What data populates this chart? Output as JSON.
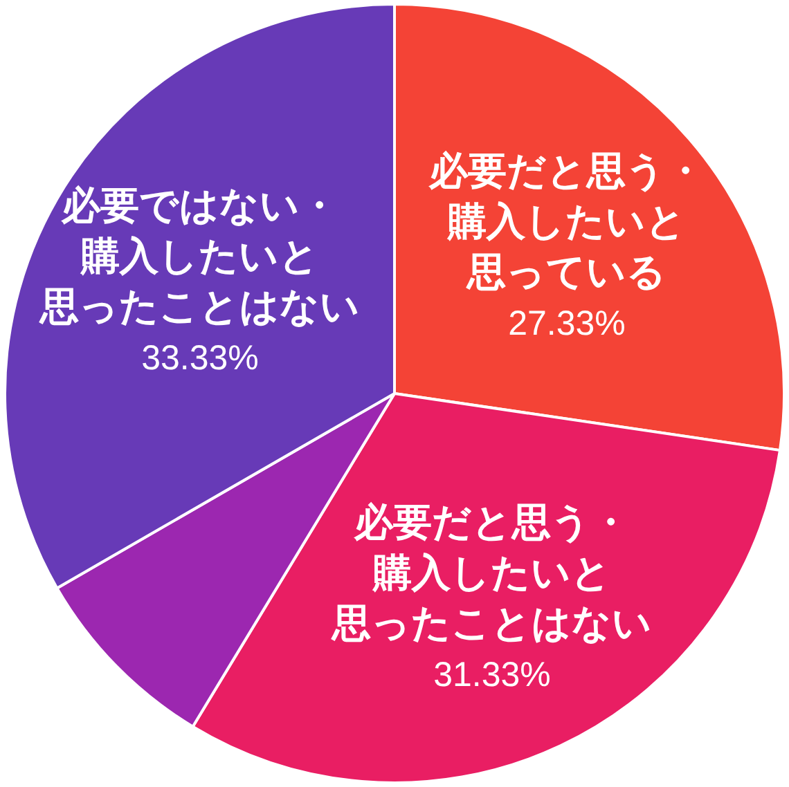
{
  "chart_data": {
    "type": "pie",
    "categories": [
      "必要だと思う・購入したいと思っている",
      "必要だと思う・購入したいと思ったことはない",
      null,
      "必要ではない・購入したいと思ったことはない"
    ],
    "values": [
      27.33,
      31.33,
      8.01,
      33.33
    ],
    "colors": [
      "#f44336",
      "#e91e63",
      "#9c27b0",
      "#673ab7"
    ],
    "value_labels": [
      "27.33%",
      "31.33%",
      null,
      "33.33%"
    ]
  }
}
